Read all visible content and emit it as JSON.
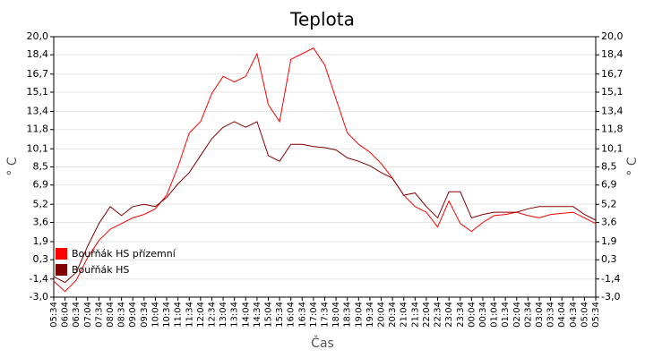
{
  "chart_data": {
    "type": "line",
    "title": "Teplota",
    "x_label": "Čas",
    "y_label": "° C",
    "categories": [
      "05:34",
      "06:04",
      "06:34",
      "07:04",
      "07:34",
      "08:04",
      "08:34",
      "09:04",
      "09:34",
      "10:04",
      "10:34",
      "11:04",
      "11:34",
      "12:04",
      "12:34",
      "13:04",
      "13:34",
      "14:04",
      "14:34",
      "15:04",
      "15:34",
      "16:04",
      "16:34",
      "17:04",
      "17:34",
      "18:04",
      "18:34",
      "19:04",
      "19:34",
      "20:04",
      "20:34",
      "21:04",
      "21:34",
      "22:04",
      "22:34",
      "23:04",
      "23:34",
      "00:04",
      "00:34",
      "01:04",
      "01:34",
      "02:04",
      "02:34",
      "03:04",
      "03:34",
      "04:04",
      "04:34",
      "05:04",
      "05:34"
    ],
    "series": [
      {
        "name": "Bouřňák HS přízemní",
        "color": "#ff0000",
        "values": [
          -1.6,
          -2.5,
          -1.5,
          0.5,
          2.0,
          3.0,
          3.5,
          4.0,
          4.3,
          4.8,
          6.0,
          8.5,
          11.5,
          12.5,
          15.0,
          16.5,
          16.0,
          16.5,
          18.5,
          14.0,
          12.5,
          18.0,
          18.5,
          19.0,
          17.5,
          14.5,
          11.5,
          10.5,
          9.8,
          8.8,
          7.5,
          6.0,
          5.0,
          4.5,
          3.2,
          5.5,
          3.5,
          2.8,
          3.6,
          4.2,
          4.3,
          4.5,
          4.2,
          4.0,
          4.3,
          4.4,
          4.5,
          4.0,
          3.5
        ]
      },
      {
        "name": "Bouřňák HS",
        "color": "#800000",
        "values": [
          -1.2,
          -1.7,
          -0.8,
          1.5,
          3.5,
          5.0,
          4.2,
          5.0,
          5.2,
          5.0,
          5.8,
          7.0,
          8.0,
          9.5,
          11.0,
          12.0,
          12.5,
          12.0,
          12.5,
          9.5,
          9.0,
          10.5,
          10.5,
          10.3,
          10.2,
          10.0,
          9.3,
          9.0,
          8.6,
          8.0,
          7.5,
          6.0,
          6.2,
          5.0,
          4.0,
          6.3,
          6.3,
          4.0,
          4.3,
          4.5,
          4.5,
          4.5,
          4.8,
          5.0,
          5.0,
          5.0,
          5.0,
          4.3,
          3.8
        ]
      }
    ],
    "ylim": [
      -3,
      20
    ],
    "yticks": [
      {
        "value": -3,
        "label": "-3,0"
      },
      {
        "value": -1.4,
        "label": "-1,4"
      },
      {
        "value": 0.3,
        "label": "0,3"
      },
      {
        "value": 1.9,
        "label": "1,9"
      },
      {
        "value": 3.6,
        "label": "3,6"
      },
      {
        "value": 5.2,
        "label": "5,2"
      },
      {
        "value": 6.9,
        "label": "6,9"
      },
      {
        "value": 8.5,
        "label": "8,5"
      },
      {
        "value": 10.1,
        "label": "10,1"
      },
      {
        "value": 11.8,
        "label": "11,8"
      },
      {
        "value": 13.4,
        "label": "13,4"
      },
      {
        "value": 15.1,
        "label": "15,1"
      },
      {
        "value": 16.7,
        "label": "16,7"
      },
      {
        "value": 18.4,
        "label": "18,4"
      },
      {
        "value": 20,
        "label": "20,0"
      }
    ],
    "grid": true,
    "legend": "bottom-left"
  }
}
